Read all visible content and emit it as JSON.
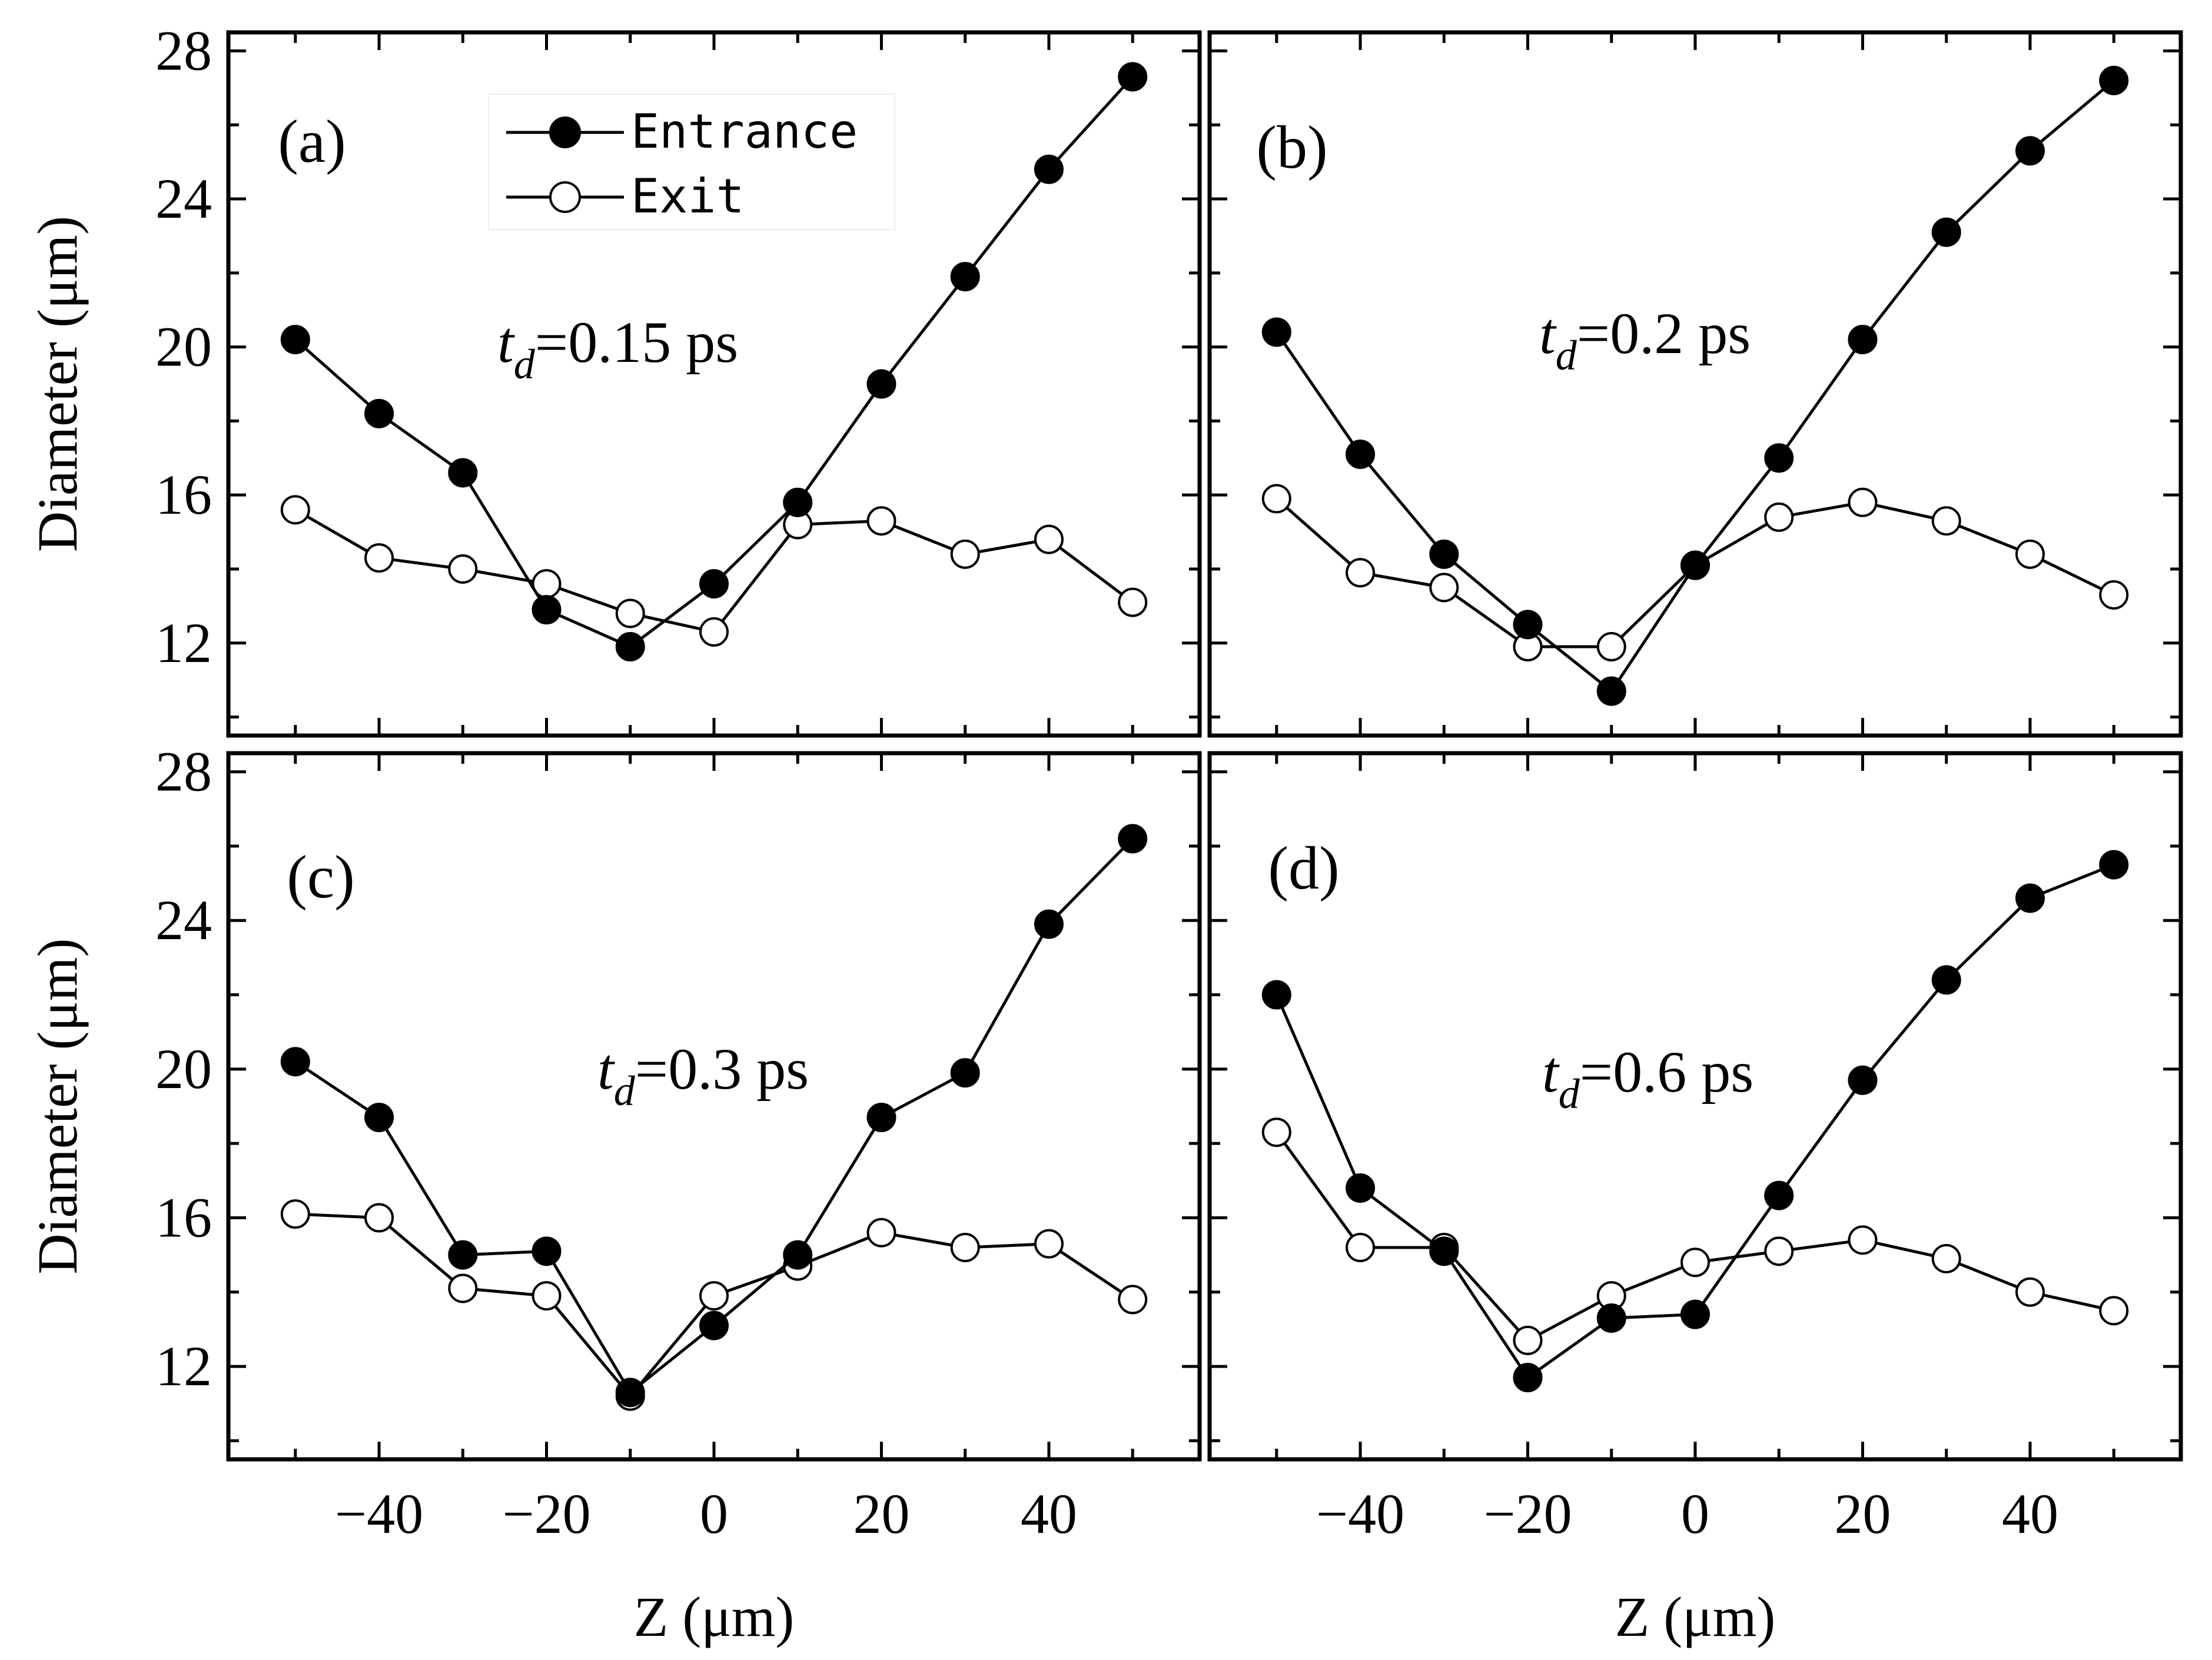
{
  "chart_data": [
    {
      "type": "line",
      "panel": "(a)",
      "annotation": {
        "symbol": "t",
        "subscript": "d",
        "value": "=0.15 ps"
      },
      "x": [
        -50,
        -40,
        -30,
        -20,
        -10,
        0,
        10,
        20,
        30,
        40,
        50
      ],
      "series": [
        {
          "name": "Entrance",
          "marker": "filled",
          "values": [
            20.2,
            18.2,
            16.6,
            12.9,
            11.9,
            13.6,
            15.8,
            19.0,
            21.9,
            24.8,
            27.3
          ]
        },
        {
          "name": "Exit",
          "marker": "open",
          "values": [
            15.6,
            14.3,
            14.0,
            13.6,
            12.8,
            12.3,
            15.2,
            15.3,
            14.4,
            14.8,
            13.1
          ]
        }
      ],
      "legend": true,
      "ylabel": "Diameter (μm)",
      "xlabel": "",
      "xlim": [
        -58,
        58
      ],
      "ylim": [
        9.5,
        28.5
      ],
      "yticks": [
        12,
        16,
        20,
        24,
        28
      ],
      "xticks": [
        -40,
        -20,
        0,
        20,
        40
      ]
    },
    {
      "type": "line",
      "panel": "(b)",
      "annotation": {
        "symbol": "t",
        "subscript": "d",
        "value": "=0.2 ps"
      },
      "x": [
        -50,
        -40,
        -30,
        -20,
        -10,
        0,
        10,
        20,
        30,
        40,
        50
      ],
      "series": [
        {
          "name": "Entrance",
          "marker": "filled",
          "values": [
            20.4,
            17.1,
            14.4,
            12.5,
            10.7,
            14.1,
            17.0,
            20.2,
            23.1,
            25.3,
            27.2
          ]
        },
        {
          "name": "Exit",
          "marker": "open",
          "values": [
            15.9,
            13.9,
            13.5,
            11.9,
            11.9,
            14.1,
            15.4,
            15.8,
            15.3,
            14.4,
            13.3
          ]
        }
      ],
      "legend": false,
      "ylabel": "",
      "xlabel": "",
      "xlim": [
        -58,
        58
      ],
      "ylim": [
        9.5,
        28.5
      ],
      "yticks": [
        12,
        16,
        20,
        24,
        28
      ],
      "xticks": [
        -40,
        -20,
        0,
        20,
        40
      ]
    },
    {
      "type": "line",
      "panel": "(c)",
      "annotation": {
        "symbol": "t",
        "subscript": "d",
        "value": "=0.3 ps"
      },
      "x": [
        -50,
        -40,
        -30,
        -20,
        -10,
        0,
        10,
        20,
        30,
        40,
        50
      ],
      "series": [
        {
          "name": "Entrance",
          "marker": "filled",
          "values": [
            20.2,
            18.7,
            15.0,
            15.1,
            11.3,
            13.1,
            15.0,
            18.7,
            19.9,
            23.9,
            26.2
          ]
        },
        {
          "name": "Exit",
          "marker": "open",
          "values": [
            16.1,
            16.0,
            14.1,
            13.9,
            11.2,
            13.9,
            14.7,
            15.6,
            15.2,
            15.3,
            13.8
          ]
        }
      ],
      "legend": false,
      "ylabel": "Diameter (μm)",
      "xlabel": "Z (μm)",
      "xlim": [
        -58,
        58
      ],
      "ylim": [
        9.5,
        28.5
      ],
      "yticks": [
        12,
        16,
        20,
        24,
        28
      ],
      "xticks": [
        -40,
        -20,
        0,
        20,
        40
      ]
    },
    {
      "type": "line",
      "panel": "(d)",
      "annotation": {
        "symbol": "t",
        "subscript": "d",
        "value": "=0.6 ps"
      },
      "x": [
        -50,
        -40,
        -30,
        -20,
        -10,
        0,
        10,
        20,
        30,
        40,
        50
      ],
      "series": [
        {
          "name": "Entrance",
          "marker": "filled",
          "values": [
            22.0,
            16.8,
            15.1,
            11.7,
            13.3,
            13.4,
            16.6,
            19.7,
            22.4,
            24.6,
            25.5
          ]
        },
        {
          "name": "Exit",
          "marker": "open",
          "values": [
            18.3,
            15.2,
            15.2,
            12.7,
            13.9,
            14.8,
            15.1,
            15.4,
            14.9,
            14.0,
            13.5
          ]
        }
      ],
      "legend": false,
      "ylabel": "",
      "xlabel": "Z (μm)",
      "xlim": [
        -58,
        58
      ],
      "ylim": [
        9.5,
        28.5
      ],
      "yticks": [
        12,
        16,
        20,
        24,
        28
      ],
      "xticks": [
        -40,
        -20,
        0,
        20,
        40
      ]
    }
  ]
}
